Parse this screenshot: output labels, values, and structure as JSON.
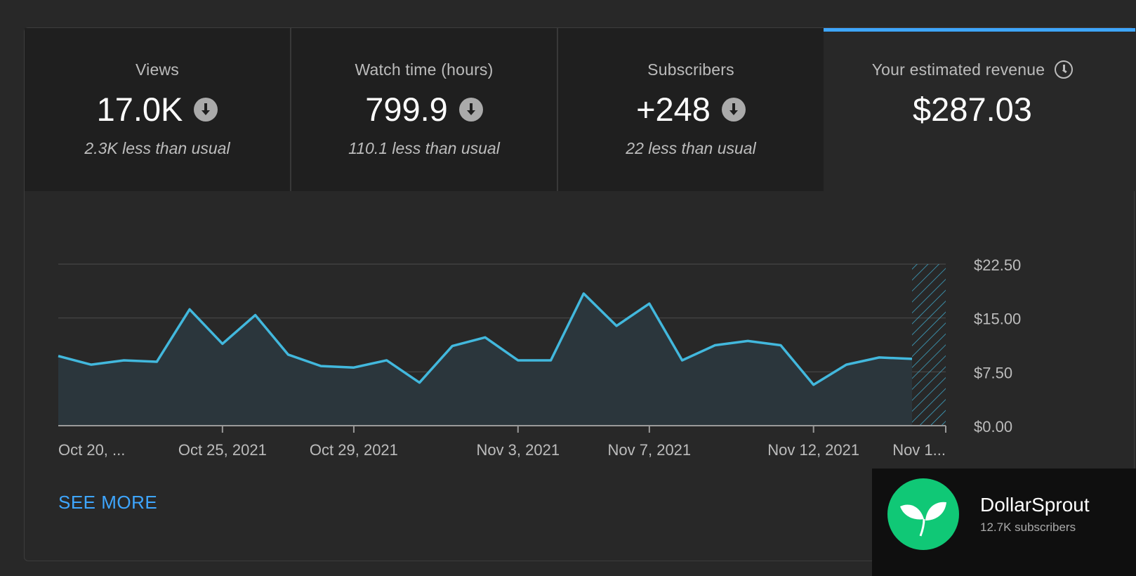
{
  "tabs": [
    {
      "label": "Views",
      "value": "17.0K",
      "sub": "2.3K less than usual",
      "trend_icon": "arrow-down-circle-icon"
    },
    {
      "label": "Watch time (hours)",
      "value": "799.9",
      "sub": "110.1 less than usual",
      "trend_icon": "arrow-down-circle-icon"
    },
    {
      "label": "Subscribers",
      "value": "+248",
      "sub": "22 less than usual",
      "trend_icon": "arrow-down-circle-icon"
    },
    {
      "label": "Your estimated revenue",
      "value": "$287.03",
      "info_icon": "clock-icon",
      "active": true
    }
  ],
  "colors": {
    "accent": "#3ea6ff",
    "line": "#42b8dd",
    "area": "#2b363c",
    "brand_green": "#10c876"
  },
  "chart_data": {
    "type": "area",
    "title": "",
    "xlabel": "",
    "ylabel": "",
    "ylim": [
      0,
      22.5
    ],
    "y_ticks": [
      "$22.50",
      "$15.00",
      "$7.50",
      "$0.00"
    ],
    "y_tick_values": [
      22.5,
      15,
      7.5,
      0
    ],
    "x_tick_labels": [
      "Oct 20, ...",
      "Oct 25, 2021",
      "Oct 29, 2021",
      "Nov 3, 2021",
      "Nov 7, 2021",
      "Nov 12, 2021",
      "Nov 1..."
    ],
    "x_tick_index": [
      0,
      5,
      9,
      14,
      18,
      23,
      27
    ],
    "series": [
      {
        "values": [
          9.7,
          8.5,
          9.1,
          8.9,
          16.2,
          11.4,
          15.4,
          9.9,
          8.3,
          8.1,
          9.1,
          6.0,
          11.1,
          12.3,
          9.1,
          9.1,
          18.4,
          13.9,
          17.0,
          9.1,
          11.2,
          11.8,
          11.2,
          5.7,
          8.5,
          9.5,
          9.3
        ]
      }
    ],
    "partial_period": "hatched",
    "grid": true
  },
  "see_more_label": "SEE MORE",
  "channel": {
    "name": "DollarSprout",
    "subscribers": "12.7K subscribers",
    "logo_icon": "sprout-leaf-icon"
  }
}
